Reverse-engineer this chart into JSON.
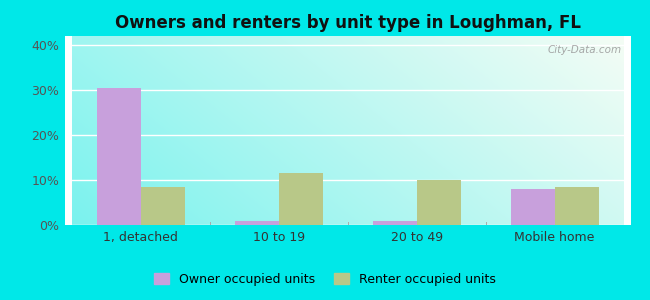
{
  "title": "Owners and renters by unit type in Loughman, FL",
  "categories": [
    "1, detached",
    "10 to 19",
    "20 to 49",
    "Mobile home"
  ],
  "owner_values": [
    30.5,
    1.0,
    1.0,
    8.0
  ],
  "renter_values": [
    8.5,
    11.5,
    10.0,
    8.5
  ],
  "owner_color": "#c8a0dc",
  "renter_color": "#b8c888",
  "owner_label": "Owner occupied units",
  "renter_label": "Renter occupied units",
  "ylim": [
    0,
    42
  ],
  "yticks": [
    0,
    10,
    20,
    30,
    40
  ],
  "ytick_labels": [
    "0%",
    "10%",
    "20%",
    "30%",
    "40%"
  ],
  "figure_bg": "#00e8e8",
  "watermark": "City-Data.com",
  "bar_width": 0.32,
  "grid_color": "#ccddcc"
}
